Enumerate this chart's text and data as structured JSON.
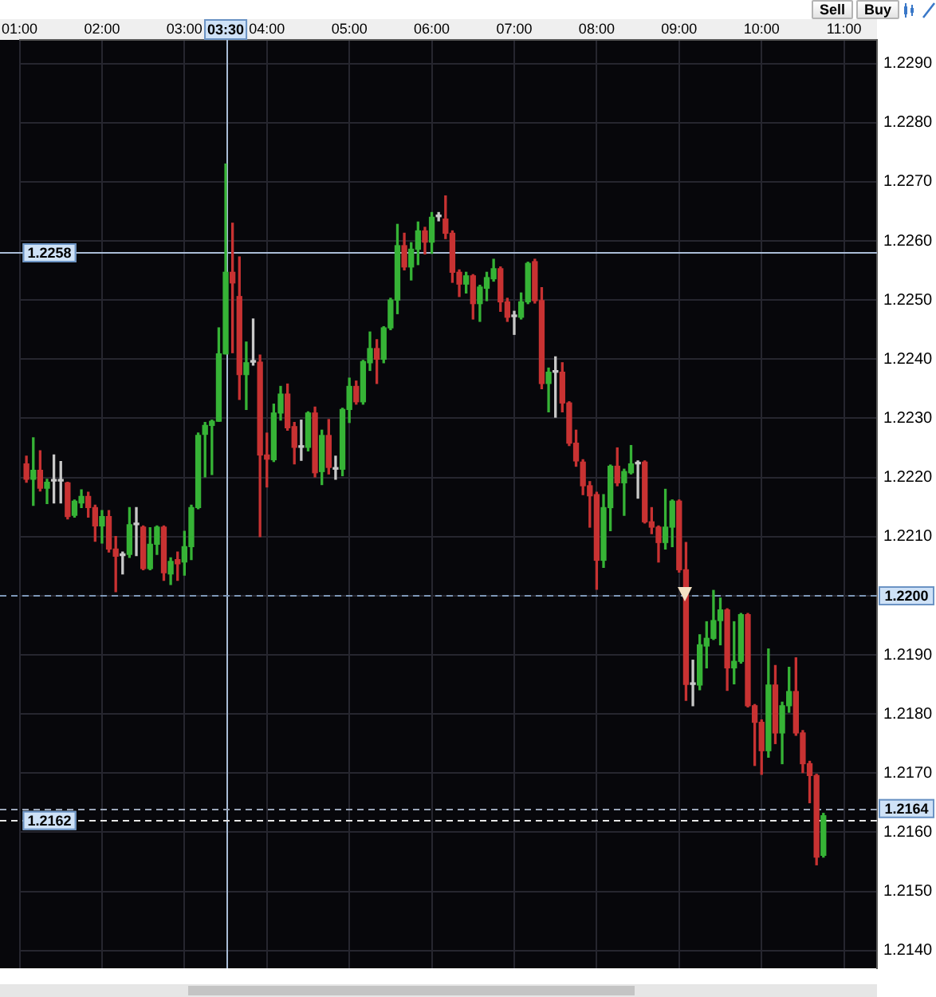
{
  "chart_data": {
    "type": "candlestick",
    "x": [
      1.0833,
      1.1667,
      1.25,
      1.3333,
      1.4167,
      1.5,
      1.5833,
      1.6667,
      1.75,
      1.8333,
      1.9167,
      2,
      2.0833,
      2.1667,
      2.25,
      2.3333,
      2.4167,
      2.5,
      2.5833,
      2.6667,
      2.75,
      2.8333,
      2.9167,
      3,
      3.0833,
      3.1667,
      3.25,
      3.3333,
      3.4167,
      3.5,
      3.5833,
      3.6667,
      3.75,
      3.8333,
      3.9167,
      4,
      4.0833,
      4.1667,
      4.25,
      4.3333,
      4.4167,
      4.5,
      4.5833,
      4.6667,
      4.75,
      4.8333,
      4.9167,
      5,
      5.0833,
      5.1667,
      5.25,
      5.3333,
      5.4167,
      5.5,
      5.5833,
      5.6667,
      5.75,
      5.8333,
      5.9167,
      6,
      6.0833,
      6.1667,
      6.25,
      6.3333,
      6.4167,
      6.5,
      6.5833,
      6.6667,
      6.75,
      6.8333,
      6.9167,
      7,
      7.0833,
      7.1667,
      7.25,
      7.3333,
      7.4167,
      7.5,
      7.5833,
      7.6667,
      7.75,
      7.8333,
      7.9167,
      8,
      8.0833,
      8.1667,
      8.25,
      8.3333,
      8.4167,
      8.5,
      8.5833,
      8.6667,
      8.75,
      8.8333,
      8.9167,
      9,
      9.0833,
      9.1667,
      9.25,
      9.3333,
      9.4167,
      9.5,
      9.5833,
      9.6667,
      9.75,
      9.8333,
      9.9167,
      10,
      10.0833,
      10.1667,
      10.25,
      10.3333,
      10.4167,
      10.5,
      10.5833,
      10.6667,
      10.75
    ],
    "ohlc": [
      [
        1.22223,
        1.22236,
        1.22192,
        1.22197
      ],
      [
        1.22197,
        1.22267,
        1.22153,
        1.22212
      ],
      [
        1.22212,
        1.22245,
        1.22177,
        1.22182
      ],
      [
        1.22182,
        1.22197,
        1.22156,
        1.22192
      ],
      [
        1.22194,
        1.22238,
        1.22157,
        1.22194
      ],
      [
        1.22194,
        1.22227,
        1.22157,
        1.22194
      ],
      [
        1.22191,
        1.22192,
        1.2213,
        1.22134
      ],
      [
        1.22136,
        1.22162,
        1.22133,
        1.2216
      ],
      [
        1.22157,
        1.22179,
        1.22149,
        1.22168
      ],
      [
        1.22168,
        1.22175,
        1.22133,
        1.22149
      ],
      [
        1.22149,
        1.22153,
        1.22092,
        1.22118
      ],
      [
        1.22118,
        1.22144,
        1.22089,
        1.22134
      ],
      [
        1.22134,
        1.22144,
        1.22074,
        1.22079
      ],
      [
        1.22079,
        1.221,
        1.22007,
        1.22067
      ],
      [
        1.22068,
        1.22074,
        1.22037,
        1.22068
      ],
      [
        1.2207,
        1.22149,
        1.22065,
        1.2212
      ],
      [
        1.2212,
        1.22149,
        1.22068,
        1.2212
      ],
      [
        1.22116,
        1.22118,
        1.22044,
        1.22046
      ],
      [
        1.22046,
        1.22115,
        1.22044,
        1.22087
      ],
      [
        1.22087,
        1.22118,
        1.2207,
        1.22116
      ],
      [
        1.22116,
        1.22118,
        1.22026,
        1.22039
      ],
      [
        1.22037,
        1.22064,
        1.22019,
        1.22058
      ],
      [
        1.22061,
        1.22074,
        1.22026,
        1.22054
      ],
      [
        1.22057,
        1.22109,
        1.22035,
        1.22083
      ],
      [
        1.22083,
        1.22153,
        1.22061,
        1.22149
      ],
      [
        1.22149,
        1.22275,
        1.22147,
        1.22271
      ],
      [
        1.22273,
        1.22293,
        1.22201,
        1.22288
      ],
      [
        1.22288,
        1.22297,
        1.22205,
        1.22295
      ],
      [
        1.22295,
        1.22453,
        1.22295,
        1.22409
      ],
      [
        1.22409,
        1.2273,
        1.22409,
        1.22547
      ],
      [
        1.22547,
        1.2263,
        1.22411,
        1.22529
      ],
      [
        1.22506,
        1.22573,
        1.22332,
        1.22374
      ],
      [
        1.22374,
        1.22429,
        1.22315,
        1.22394
      ],
      [
        1.22395,
        1.22468,
        1.2239,
        1.22395
      ],
      [
        1.22395,
        1.22407,
        1.221,
        1.22238
      ],
      [
        1.22238,
        1.22275,
        1.22184,
        1.22231
      ],
      [
        1.2223,
        1.22324,
        1.22227,
        1.22309
      ],
      [
        1.22309,
        1.22354,
        1.22297,
        1.22341
      ],
      [
        1.22341,
        1.22358,
        1.2228,
        1.22284
      ],
      [
        1.22286,
        1.22293,
        1.22223,
        1.22251
      ],
      [
        1.22251,
        1.22297,
        1.22229,
        1.22251
      ],
      [
        1.22251,
        1.22311,
        1.22245,
        1.22309
      ],
      [
        1.22309,
        1.22319,
        1.22201,
        1.22208
      ],
      [
        1.2221,
        1.2228,
        1.22188,
        1.22271
      ],
      [
        1.22271,
        1.22298,
        1.22206,
        1.22217
      ],
      [
        1.22214,
        1.22236,
        1.22197,
        1.22214
      ],
      [
        1.22214,
        1.22317,
        1.22203,
        1.22315
      ],
      [
        1.22315,
        1.22368,
        1.22293,
        1.22354
      ],
      [
        1.22354,
        1.22363,
        1.22324,
        1.22328
      ],
      [
        1.22328,
        1.22398,
        1.22324,
        1.22396
      ],
      [
        1.22394,
        1.22446,
        1.22381,
        1.22418
      ],
      [
        1.22418,
        1.22433,
        1.22359,
        1.224
      ],
      [
        1.224,
        1.22455,
        1.22394,
        1.22453
      ],
      [
        1.22453,
        1.22503,
        1.2245,
        1.225
      ],
      [
        1.225,
        1.22628,
        1.22477,
        1.22592
      ],
      [
        1.22592,
        1.22613,
        1.22551,
        1.22556
      ],
      [
        1.22556,
        1.22597,
        1.22534,
        1.22586
      ],
      [
        1.22586,
        1.22632,
        1.2256,
        1.22617
      ],
      [
        1.22617,
        1.22623,
        1.22578,
        1.22598
      ],
      [
        1.22598,
        1.22648,
        1.22579,
        1.2264
      ],
      [
        1.22641,
        1.22648,
        1.22634,
        1.22641
      ],
      [
        1.22637,
        1.22676,
        1.22604,
        1.22613
      ],
      [
        1.22613,
        1.22617,
        1.2253,
        1.22547
      ],
      [
        1.22547,
        1.22551,
        1.22506,
        1.22527
      ],
      [
        1.22527,
        1.22547,
        1.22512,
        1.22541
      ],
      [
        1.22541,
        1.22543,
        1.22468,
        1.22494
      ],
      [
        1.22494,
        1.22525,
        1.22464,
        1.22522
      ],
      [
        1.2252,
        1.22547,
        1.22499,
        1.22538
      ],
      [
        1.22536,
        1.22569,
        1.22532,
        1.22553
      ],
      [
        1.22553,
        1.22556,
        1.22481,
        1.22497
      ],
      [
        1.22497,
        1.22503,
        1.22464,
        1.22471
      ],
      [
        1.22472,
        1.22481,
        1.22442,
        1.22472
      ],
      [
        1.22471,
        1.22512,
        1.22468,
        1.22497
      ],
      [
        1.22497,
        1.22564,
        1.22494,
        1.22562
      ],
      [
        1.22565,
        1.22569,
        1.22495,
        1.22499
      ],
      [
        1.22499,
        1.22521,
        1.2235,
        1.22359
      ],
      [
        1.22359,
        1.22385,
        1.22311,
        1.22378
      ],
      [
        1.22378,
        1.22404,
        1.22302,
        1.22378
      ],
      [
        1.22378,
        1.22394,
        1.22311,
        1.22326
      ],
      [
        1.22326,
        1.22328,
        1.22254,
        1.22258
      ],
      [
        1.22258,
        1.2228,
        1.22219,
        1.22228
      ],
      [
        1.22226,
        1.2223,
        1.22171,
        1.22186
      ],
      [
        1.22186,
        1.22193,
        1.22116,
        1.22169
      ],
      [
        1.22171,
        1.22175,
        1.22011,
        1.2206
      ],
      [
        1.2206,
        1.22171,
        1.22048,
        1.22149
      ],
      [
        1.22149,
        1.22221,
        1.2211,
        1.22219
      ],
      [
        1.22219,
        1.2225,
        1.22186,
        1.22191
      ],
      [
        1.22191,
        1.22214,
        1.22136,
        1.2221
      ],
      [
        1.22208,
        1.22254,
        1.22206,
        1.22223
      ],
      [
        1.22223,
        1.22228,
        1.22165,
        1.22223
      ],
      [
        1.22226,
        1.22228,
        1.22123,
        1.22125
      ],
      [
        1.22125,
        1.22149,
        1.22105,
        1.22116
      ],
      [
        1.22116,
        1.22118,
        1.22057,
        1.2209
      ],
      [
        1.2209,
        1.2218,
        1.22079,
        1.22116
      ],
      [
        1.22116,
        1.22162,
        1.22083,
        1.2216
      ],
      [
        1.2216,
        1.22162,
        1.2204,
        1.22044
      ],
      [
        1.22044,
        1.2209,
        1.21823,
        1.2185
      ],
      [
        1.2185,
        1.21891,
        1.21814,
        1.2185
      ],
      [
        1.21849,
        1.21934,
        1.21841,
        1.21917
      ],
      [
        1.21915,
        1.21956,
        1.21878,
        1.21928
      ],
      [
        1.21928,
        1.22009,
        1.21926,
        1.21958
      ],
      [
        1.21958,
        1.21996,
        1.21917,
        1.21976
      ],
      [
        1.21976,
        1.21978,
        1.2184,
        1.21878
      ],
      [
        1.21878,
        1.21956,
        1.21851,
        1.21889
      ],
      [
        1.21889,
        1.2197,
        1.21886,
        1.21968
      ],
      [
        1.21968,
        1.2197,
        1.21812,
        1.21814
      ],
      [
        1.21814,
        1.21816,
        1.21713,
        1.21786
      ],
      [
        1.21786,
        1.2179,
        1.21698,
        1.21738
      ],
      [
        1.21738,
        1.2191,
        1.21727,
        1.21849
      ],
      [
        1.21849,
        1.21882,
        1.2175,
        1.21768
      ],
      [
        1.21768,
        1.2182,
        1.21716,
        1.21814
      ],
      [
        1.21814,
        1.21879,
        1.21803,
        1.21838
      ],
      [
        1.21838,
        1.21895,
        1.21764,
        1.21768
      ],
      [
        1.21768,
        1.21772,
        1.21701,
        1.21716
      ],
      [
        1.21716,
        1.2172,
        1.2165,
        1.21696
      ],
      [
        1.21696,
        1.21698,
        1.21545,
        1.21558
      ],
      [
        1.21561,
        1.21632,
        1.21558,
        1.21628
      ]
    ],
    "colors": [
      "#c83232",
      "#36b336",
      "#c83232",
      "#36b336",
      "#c8c8c8",
      "#c8c8c8",
      "#c83232",
      "#36b336",
      "#36b336",
      "#c83232",
      "#c83232",
      "#36b336",
      "#c83232",
      "#c83232",
      "#c8c8c8",
      "#36b336",
      "#c8c8c8",
      "#c83232",
      "#36b336",
      "#36b336",
      "#c83232",
      "#36b336",
      "#c83232",
      "#36b336",
      "#36b336",
      "#36b336",
      "#36b336",
      "#36b336",
      "#36b336",
      "#36b336",
      "#c83232",
      "#c83232",
      "#36b336",
      "#c8c8c8",
      "#c83232",
      "#c83232",
      "#36b336",
      "#36b336",
      "#c83232",
      "#c83232",
      "#c8c8c8",
      "#36b336",
      "#c83232",
      "#36b336",
      "#c83232",
      "#c8c8c8",
      "#36b336",
      "#36b336",
      "#c83232",
      "#36b336",
      "#36b336",
      "#c83232",
      "#36b336",
      "#36b336",
      "#36b336",
      "#c83232",
      "#36b336",
      "#36b336",
      "#c83232",
      "#36b336",
      "#c8c8c8",
      "#c83232",
      "#c83232",
      "#c83232",
      "#36b336",
      "#c83232",
      "#36b336",
      "#36b336",
      "#36b336",
      "#c83232",
      "#c83232",
      "#c8c8c8",
      "#36b336",
      "#36b336",
      "#c83232",
      "#c83232",
      "#36b336",
      "#c8c8c8",
      "#c83232",
      "#c83232",
      "#c83232",
      "#c83232",
      "#c83232",
      "#c83232",
      "#36b336",
      "#36b336",
      "#c83232",
      "#36b336",
      "#36b336",
      "#c8c8c8",
      "#c83232",
      "#c83232",
      "#c83232",
      "#36b336",
      "#36b336",
      "#c83232",
      "#c83232",
      "#c8c8c8",
      "#36b336",
      "#36b336",
      "#36b336",
      "#36b336",
      "#c83232",
      "#36b336",
      "#36b336",
      "#c83232",
      "#c83232",
      "#c83232",
      "#36b336",
      "#c83232",
      "#36b336",
      "#36b336",
      "#c83232",
      "#c83232",
      "#c83232",
      "#c83232",
      "#36b336"
    ],
    "xlim": [
      1.0,
      11.4
    ],
    "xticks": [
      {
        "value": 1,
        "label": "01:00"
      },
      {
        "value": 2,
        "label": "02:00"
      },
      {
        "value": 3,
        "label": "03:00"
      },
      {
        "value": 4,
        "label": "04:00"
      },
      {
        "value": 5,
        "label": "05:00"
      },
      {
        "value": 6,
        "label": "06:00"
      },
      {
        "value": 7,
        "label": "07:00"
      },
      {
        "value": 8,
        "label": "08:00"
      },
      {
        "value": 9,
        "label": "09:00"
      },
      {
        "value": 10,
        "label": "10:00"
      },
      {
        "value": 11,
        "label": "11:00"
      }
    ],
    "ylim": [
      1.2137,
      1.2294
    ],
    "yticks": [
      {
        "value": 1.214,
        "label": "1.2140"
      },
      {
        "value": 1.215,
        "label": "1.2150"
      },
      {
        "value": 1.216,
        "label": "1.2160"
      },
      {
        "value": 1.217,
        "label": "1.2170"
      },
      {
        "value": 1.218,
        "label": "1.2180"
      },
      {
        "value": 1.219,
        "label": "1.2190"
      },
      {
        "value": 1.22,
        "label": null
      },
      {
        "value": 1.221,
        "label": "1.2210"
      },
      {
        "value": 1.222,
        "label": "1.2220"
      },
      {
        "value": 1.223,
        "label": "1.2230"
      },
      {
        "value": 1.224,
        "label": "1.2240"
      },
      {
        "value": 1.225,
        "label": "1.2250"
      },
      {
        "value": 1.226,
        "label": "1.2260"
      },
      {
        "value": 1.227,
        "label": "1.2270"
      },
      {
        "value": 1.228,
        "label": "1.2280"
      },
      {
        "value": 1.229,
        "label": "1.2290"
      }
    ],
    "grid": true,
    "ref_lines": [
      {
        "axis": "x",
        "value": 3.5,
        "label": "03:30",
        "color": "#a9bcd6",
        "line_style": "solid"
      },
      {
        "axis": "y",
        "value": 1.2258,
        "label": "1.2258",
        "color": "#a9bcd6",
        "line_style": "solid"
      },
      {
        "axis": "y",
        "value": 1.22,
        "label": "1.2200",
        "color": "#7d97b8",
        "line_style": "dashed"
      },
      {
        "axis": "y",
        "value": 1.2164,
        "label": "1.2164",
        "color": "#9aa6b8",
        "line_style": "dashed"
      },
      {
        "axis": "y",
        "value": 1.2162,
        "label": "1.2162",
        "color": "#e6e6e6",
        "line_style": "dashed"
      }
    ],
    "annotations": [
      "Sell",
      "Buy"
    ]
  }
}
